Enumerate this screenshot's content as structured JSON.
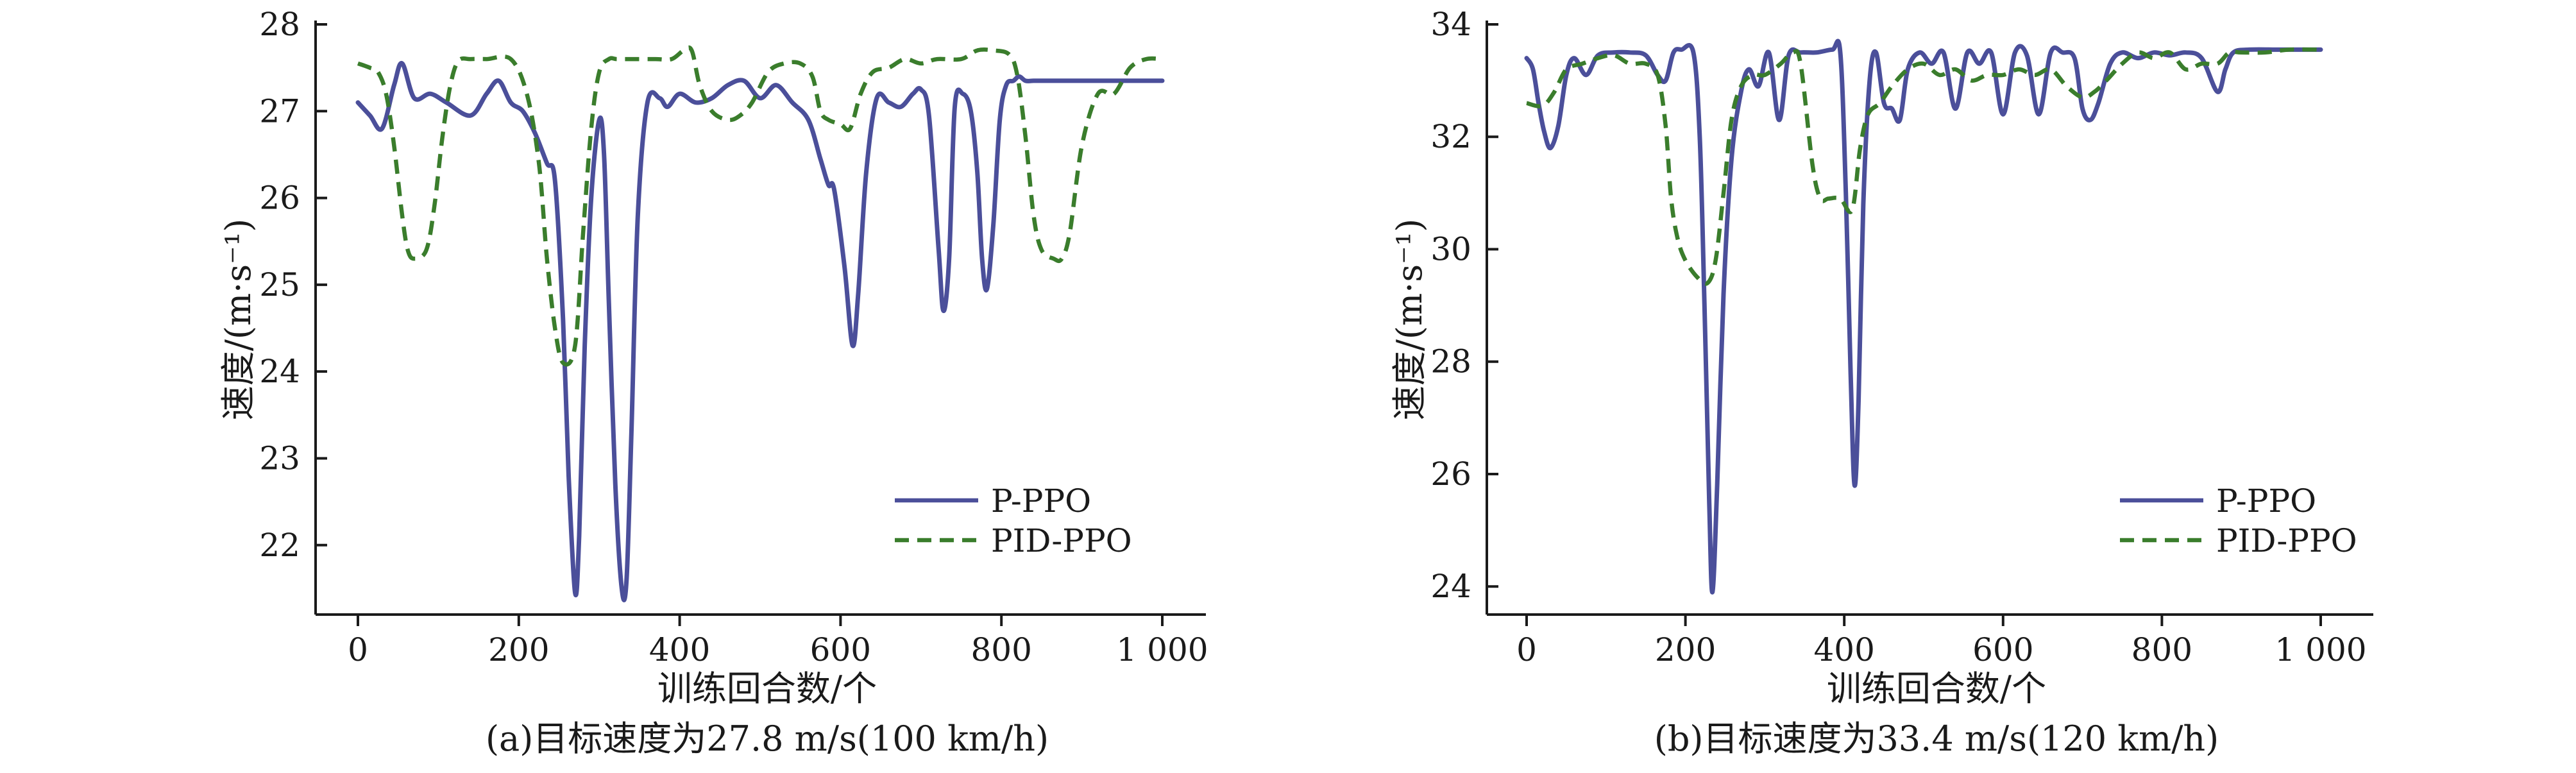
{
  "chart_data": [
    {
      "type": "line",
      "caption": "(a)目标速度为27.8 m/s(100 km/h)",
      "xlabel": "训练回合数/个",
      "ylabel": "速度/(m·s⁻¹)",
      "xlim": [
        0,
        1000
      ],
      "ylim": [
        21.2,
        28
      ],
      "xticks": [
        0,
        200,
        400,
        600,
        800,
        1000
      ],
      "xtick_labels": [
        "0",
        "200",
        "400",
        "600",
        "800",
        "1 000"
      ],
      "yticks": [
        22,
        23,
        24,
        25,
        26,
        27,
        28
      ],
      "ytick_labels": [
        "22",
        "23",
        "24",
        "25",
        "26",
        "27",
        "28"
      ],
      "grid": false,
      "legend_position": "bottom-right",
      "series": [
        {
          "name": "P-PPO",
          "color": "#4b4f9a",
          "dash": "solid",
          "x": [
            0,
            15,
            30,
            45,
            55,
            70,
            90,
            110,
            140,
            160,
            175,
            190,
            205,
            220,
            235,
            245,
            255,
            262,
            270,
            275,
            282,
            290,
            300,
            306,
            312,
            320,
            328,
            334,
            340,
            348,
            360,
            375,
            385,
            400,
            420,
            440,
            460,
            480,
            500,
            520,
            540,
            560,
            575,
            585,
            592,
            605,
            615,
            622,
            632,
            645,
            660,
            675,
            690,
            700,
            710,
            722,
            728,
            735,
            742,
            752,
            762,
            770,
            776,
            782,
            790,
            798,
            806,
            815,
            822,
            830,
            840,
            860,
            900,
            950,
            1000
          ],
          "values": [
            27.1,
            26.95,
            26.8,
            27.3,
            27.55,
            27.15,
            27.2,
            27.1,
            26.95,
            27.2,
            27.35,
            27.1,
            27.0,
            26.75,
            26.4,
            26.2,
            24.6,
            22.8,
            21.45,
            22.1,
            24.3,
            26.0,
            26.9,
            26.5,
            24.8,
            22.7,
            21.5,
            21.6,
            23.3,
            25.8,
            27.1,
            27.15,
            27.05,
            27.2,
            27.1,
            27.15,
            27.3,
            27.35,
            27.15,
            27.3,
            27.1,
            26.9,
            26.45,
            26.15,
            26.1,
            25.2,
            24.3,
            24.9,
            26.3,
            27.15,
            27.1,
            27.05,
            27.2,
            27.25,
            26.95,
            25.4,
            24.7,
            25.3,
            27.05,
            27.2,
            27.0,
            26.3,
            25.3,
            24.95,
            25.7,
            26.9,
            27.3,
            27.35,
            27.4,
            27.35,
            27.35,
            27.35,
            27.35,
            27.35,
            27.35
          ]
        },
        {
          "name": "PID-PPO",
          "color": "#3a7d2c",
          "dash": "dashed",
          "x": [
            0,
            15,
            25,
            35,
            45,
            55,
            62,
            70,
            85,
            95,
            105,
            115,
            125,
            140,
            160,
            190,
            210,
            225,
            235,
            245,
            255,
            270,
            280,
            290,
            300,
            312,
            322,
            340,
            370,
            390,
            405,
            415,
            425,
            440,
            460,
            475,
            490,
            510,
            530,
            550,
            565,
            575,
            585,
            600,
            612,
            625,
            640,
            660,
            680,
            700,
            720,
            750,
            770,
            790,
            810,
            820,
            830,
            840,
            850,
            865,
            875,
            885,
            900,
            920,
            940,
            960,
            980,
            1000
          ],
          "values": [
            27.55,
            27.5,
            27.45,
            27.2,
            26.6,
            25.8,
            25.4,
            25.3,
            25.4,
            25.9,
            26.7,
            27.3,
            27.58,
            27.6,
            27.6,
            27.6,
            27.2,
            26.4,
            25.3,
            24.5,
            24.1,
            24.3,
            25.6,
            26.8,
            27.45,
            27.6,
            27.6,
            27.6,
            27.6,
            27.6,
            27.7,
            27.7,
            27.3,
            27.0,
            26.9,
            26.95,
            27.1,
            27.45,
            27.55,
            27.55,
            27.4,
            27.0,
            26.9,
            26.85,
            26.8,
            27.2,
            27.45,
            27.5,
            27.6,
            27.55,
            27.6,
            27.6,
            27.7,
            27.7,
            27.65,
            27.4,
            26.7,
            25.8,
            25.4,
            25.3,
            25.3,
            25.6,
            26.6,
            27.2,
            27.2,
            27.5,
            27.6,
            27.6
          ]
        }
      ]
    },
    {
      "type": "line",
      "caption": "(b)目标速度为33.4 m/s(120 km/h)",
      "xlabel": "训练回合数/个",
      "ylabel": "速度/(m·s⁻¹)",
      "xlim": [
        0,
        1000
      ],
      "ylim": [
        23.5,
        34
      ],
      "xticks": [
        0,
        200,
        400,
        600,
        800,
        1000
      ],
      "xtick_labels": [
        "0",
        "200",
        "400",
        "600",
        "800",
        "1 000"
      ],
      "yticks": [
        24,
        26,
        28,
        30,
        32,
        34
      ],
      "ytick_labels": [
        "24",
        "26",
        "28",
        "30",
        "32",
        "34"
      ],
      "grid": false,
      "legend_position": "bottom-right",
      "series": [
        {
          "name": "P-PPO",
          "color": "#4b4f9a",
          "dash": "solid",
          "x": [
            0,
            8,
            15,
            22,
            30,
            40,
            50,
            60,
            75,
            90,
            110,
            130,
            150,
            165,
            175,
            185,
            195,
            210,
            218,
            224,
            230,
            234,
            240,
            248,
            258,
            270,
            280,
            292,
            305,
            318,
            330,
            345,
            365,
            385,
            395,
            402,
            408,
            413,
            418,
            424,
            432,
            440,
            450,
            460,
            470,
            480,
            495,
            510,
            525,
            540,
            555,
            570,
            585,
            600,
            615,
            630,
            645,
            660,
            675,
            690,
            700,
            710,
            720,
            735,
            750,
            770,
            790,
            810,
            830,
            850,
            870,
            880,
            890,
            910,
            950,
            1000
          ],
          "values": [
            33.4,
            33.2,
            32.6,
            32.1,
            31.8,
            32.2,
            33.1,
            33.4,
            33.1,
            33.45,
            33.5,
            33.5,
            33.45,
            33.1,
            33.0,
            33.5,
            33.55,
            33.5,
            32.0,
            29.0,
            25.5,
            23.9,
            25.8,
            29.2,
            31.6,
            32.8,
            33.2,
            32.9,
            33.5,
            32.3,
            33.45,
            33.5,
            33.5,
            33.55,
            33.5,
            31.0,
            27.8,
            25.8,
            27.3,
            30.8,
            33.0,
            33.5,
            32.6,
            32.5,
            32.3,
            33.2,
            33.5,
            33.3,
            33.5,
            32.5,
            33.5,
            33.3,
            33.5,
            32.4,
            33.5,
            33.45,
            32.4,
            33.5,
            33.5,
            33.4,
            32.5,
            32.3,
            32.6,
            33.3,
            33.5,
            33.4,
            33.5,
            33.45,
            33.5,
            33.4,
            32.8,
            33.2,
            33.5,
            33.55,
            33.55,
            33.55
          ]
        },
        {
          "name": "PID-PPO",
          "color": "#3a7d2c",
          "dash": "dashed",
          "x": [
            0,
            20,
            35,
            50,
            70,
            90,
            110,
            130,
            150,
            165,
            175,
            182,
            190,
            200,
            215,
            228,
            238,
            248,
            258,
            270,
            285,
            300,
            320,
            335,
            345,
            360,
            370,
            380,
            395,
            410,
            420,
            430,
            445,
            460,
            480,
            500,
            520,
            540,
            560,
            580,
            600,
            620,
            640,
            660,
            680,
            700,
            715,
            730,
            750,
            770,
            790,
            810,
            830,
            850,
            870,
            885,
            900,
            930,
            960,
            1000
          ],
          "values": [
            32.6,
            32.55,
            32.8,
            33.2,
            33.3,
            33.4,
            33.45,
            33.3,
            33.3,
            33.1,
            32.2,
            30.9,
            30.2,
            29.8,
            29.5,
            29.4,
            29.8,
            31.0,
            32.3,
            32.9,
            33.1,
            33.1,
            33.3,
            33.5,
            33.3,
            31.5,
            30.9,
            30.9,
            30.9,
            30.7,
            31.8,
            32.4,
            32.6,
            32.9,
            33.2,
            33.3,
            33.1,
            33.2,
            33.0,
            33.1,
            33.1,
            33.2,
            33.1,
            33.2,
            32.9,
            32.7,
            32.8,
            33.0,
            33.3,
            33.5,
            33.4,
            33.5,
            33.2,
            33.3,
            33.3,
            33.5,
            33.5,
            33.5,
            33.55,
            33.55
          ]
        }
      ]
    }
  ]
}
